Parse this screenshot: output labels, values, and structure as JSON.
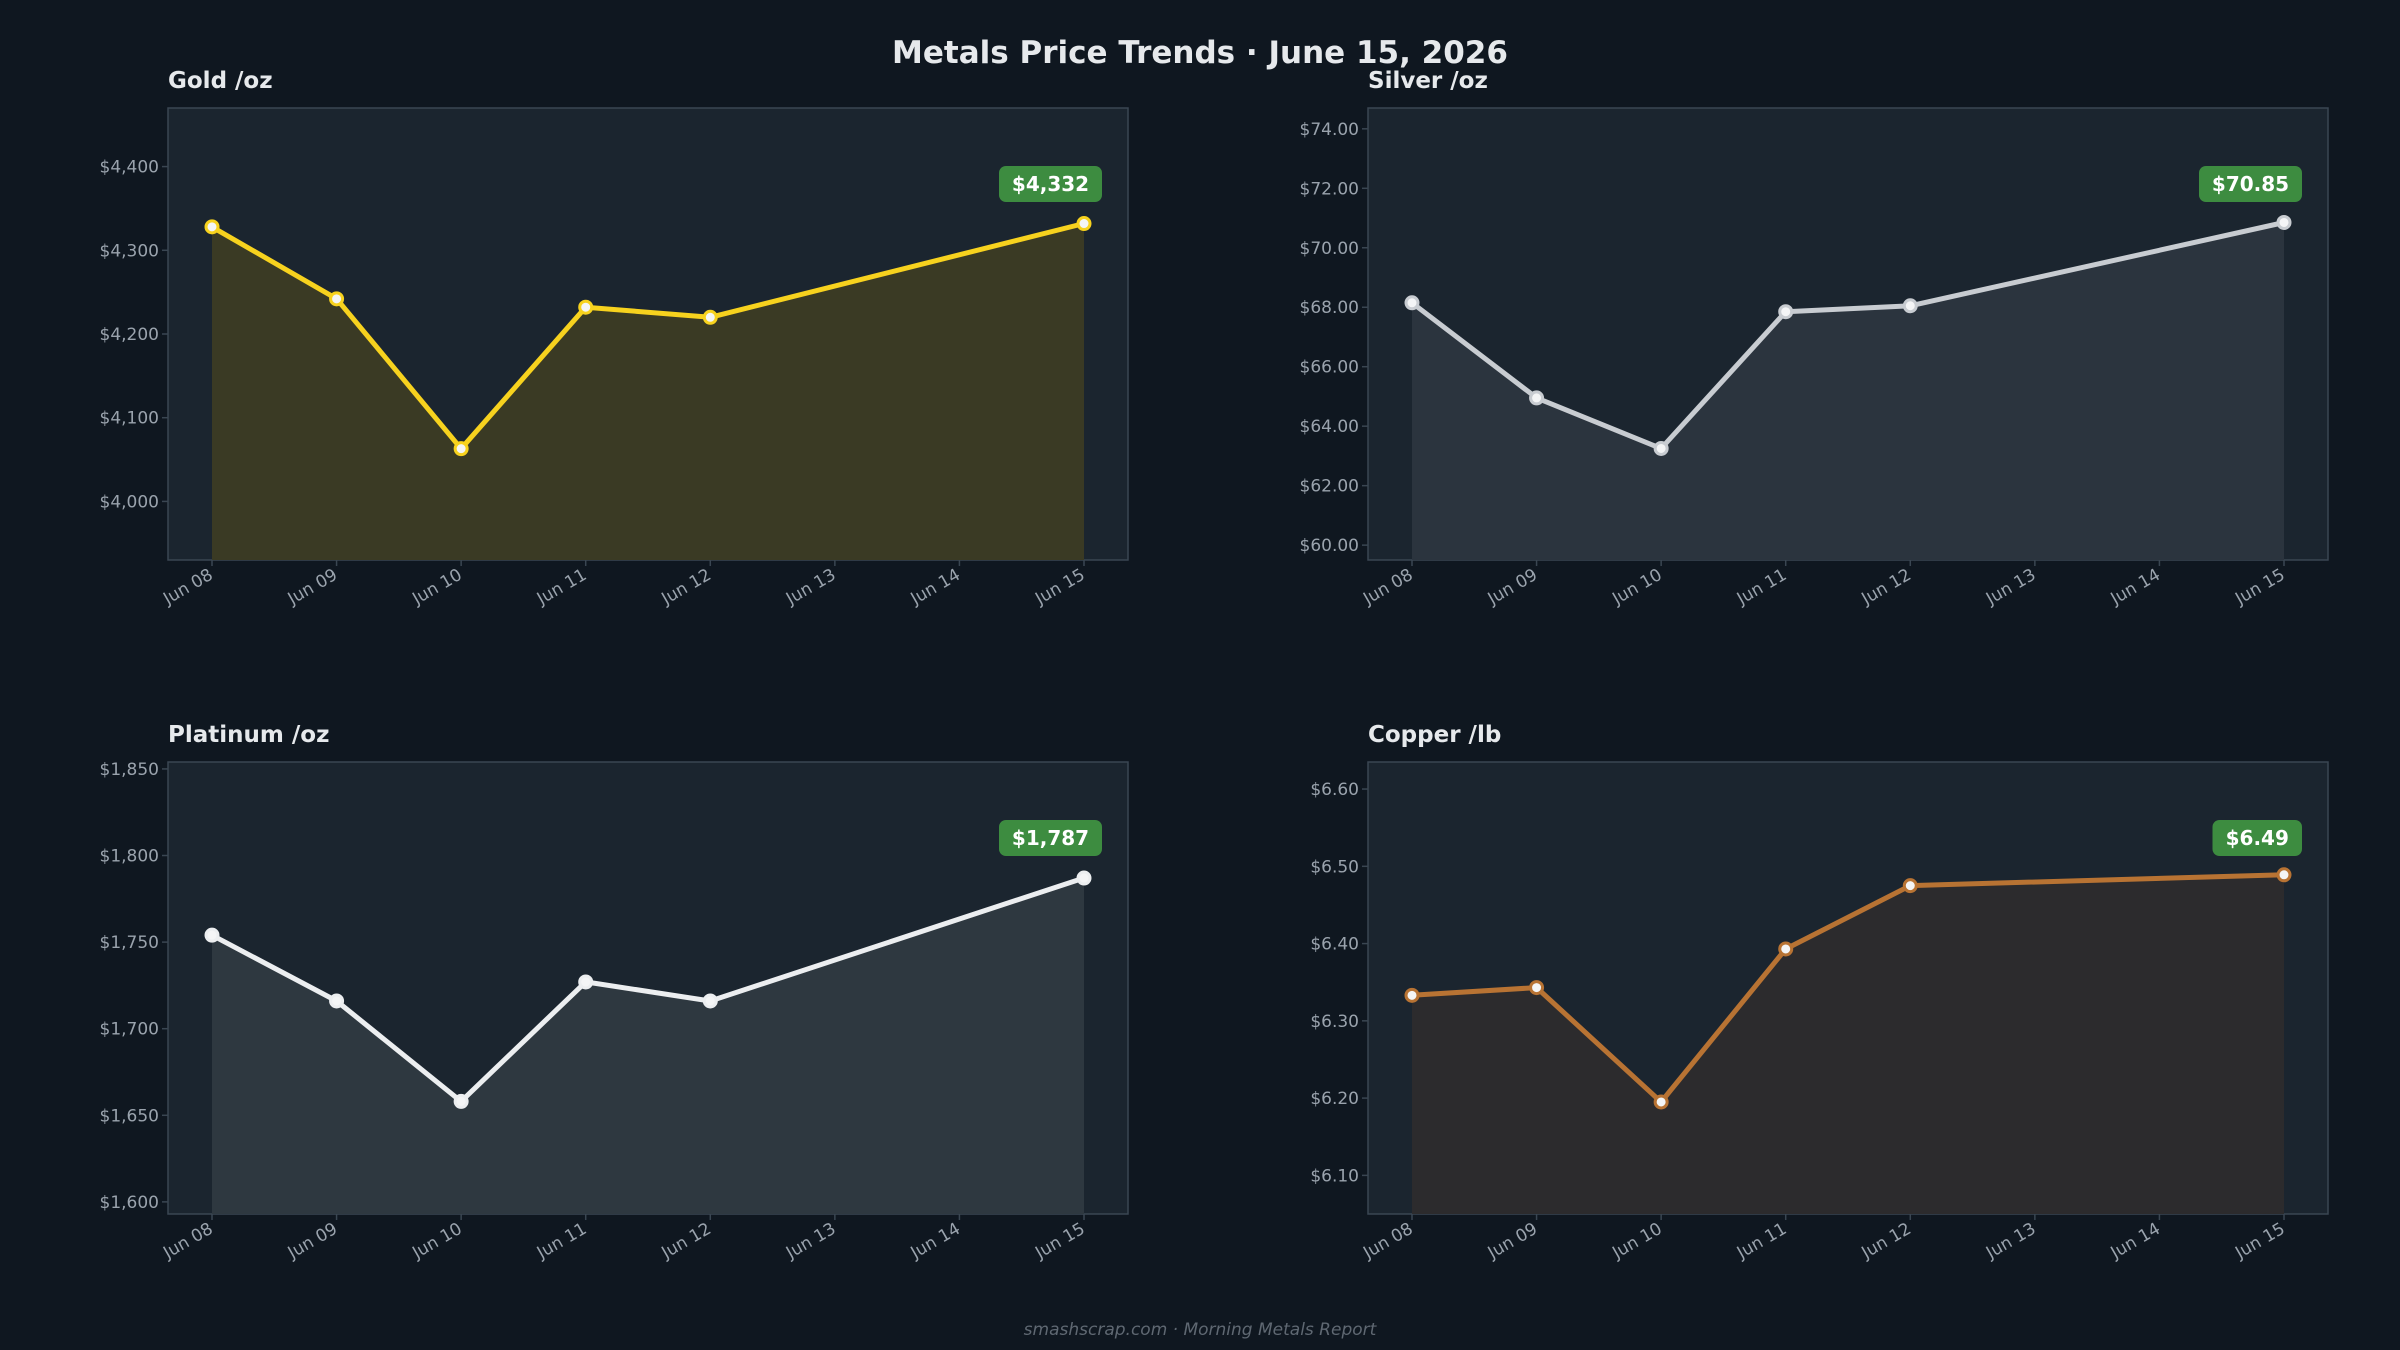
{
  "page": {
    "title": "Metals Price Trends  ·  June 15, 2026",
    "footer": "smashscrap.com  ·  Morning Metals Report"
  },
  "colors": {
    "background": "#0f1720",
    "panel": "#1b252f",
    "panel_border": "#3a4652",
    "title_text": "#e6e9ec",
    "tick_text": "#9aa3ad",
    "badge_bg": "#3d8c40",
    "badge_text": "#ffffff"
  },
  "chart_data": [
    {
      "type": "line",
      "title": "Gold  /oz",
      "categories": [
        "Jun 08",
        "Jun 09",
        "Jun 10",
        "Jun 11",
        "Jun 12",
        "Jun 13",
        "Jun 14",
        "Jun 15"
      ],
      "points": [
        {
          "x": "Jun 08",
          "y": 4328
        },
        {
          "x": "Jun 09",
          "y": 4242
        },
        {
          "x": "Jun 10",
          "y": 4063
        },
        {
          "x": "Jun 11",
          "y": 4232
        },
        {
          "x": "Jun 12",
          "y": 4220
        },
        {
          "x": "Jun 15",
          "y": 4332
        }
      ],
      "ylim": [
        3930,
        4470
      ],
      "yticks": [
        4000,
        4100,
        4200,
        4300,
        4400
      ],
      "ytick_labels": [
        "$4,000",
        "$4,100",
        "$4,200",
        "$4,300",
        "$4,400"
      ],
      "badge": "$4,332",
      "line_color": "#f7d21e",
      "fill_color": "#3a3a24",
      "grid": false
    },
    {
      "type": "line",
      "title": "Silver  /oz",
      "categories": [
        "Jun 08",
        "Jun 09",
        "Jun 10",
        "Jun 11",
        "Jun 12",
        "Jun 13",
        "Jun 14",
        "Jun 15"
      ],
      "points": [
        {
          "x": "Jun 08",
          "y": 68.15
        },
        {
          "x": "Jun 09",
          "y": 64.95
        },
        {
          "x": "Jun 10",
          "y": 63.25
        },
        {
          "x": "Jun 11",
          "y": 67.85
        },
        {
          "x": "Jun 12",
          "y": 68.05
        },
        {
          "x": "Jun 15",
          "y": 70.85
        }
      ],
      "ylim": [
        59.5,
        74.7
      ],
      "yticks": [
        60,
        62,
        64,
        66,
        68,
        70,
        72,
        74
      ],
      "ytick_labels": [
        "$60.00",
        "$62.00",
        "$64.00",
        "$66.00",
        "$68.00",
        "$70.00",
        "$72.00",
        "$74.00"
      ],
      "badge": "$70.85",
      "line_color": "#c8ccd1",
      "fill_color": "#2b343e",
      "grid": false
    },
    {
      "type": "line",
      "title": "Platinum  /oz",
      "categories": [
        "Jun 08",
        "Jun 09",
        "Jun 10",
        "Jun 11",
        "Jun 12",
        "Jun 13",
        "Jun 14",
        "Jun 15"
      ],
      "points": [
        {
          "x": "Jun 08",
          "y": 1754
        },
        {
          "x": "Jun 09",
          "y": 1716
        },
        {
          "x": "Jun 10",
          "y": 1658
        },
        {
          "x": "Jun 11",
          "y": 1727
        },
        {
          "x": "Jun 12",
          "y": 1716
        },
        {
          "x": "Jun 15",
          "y": 1787
        }
      ],
      "ylim": [
        1593,
        1854
      ],
      "yticks": [
        1600,
        1650,
        1700,
        1750,
        1800,
        1850
      ],
      "ytick_labels": [
        "$1,600",
        "$1,650",
        "$1,700",
        "$1,750",
        "$1,800",
        "$1,850"
      ],
      "badge": "$1,787",
      "line_color": "#eceef0",
      "fill_color": "#2e3840",
      "grid": false
    },
    {
      "type": "line",
      "title": "Copper  /lb",
      "categories": [
        "Jun 08",
        "Jun 09",
        "Jun 10",
        "Jun 11",
        "Jun 12",
        "Jun 13",
        "Jun 14",
        "Jun 15"
      ],
      "points": [
        {
          "x": "Jun 08",
          "y": 6.333
        },
        {
          "x": "Jun 09",
          "y": 6.343
        },
        {
          "x": "Jun 10",
          "y": 6.195
        },
        {
          "x": "Jun 11",
          "y": 6.393
        },
        {
          "x": "Jun 12",
          "y": 6.475
        },
        {
          "x": "Jun 15",
          "y": 6.489
        }
      ],
      "ylim": [
        6.05,
        6.635
      ],
      "yticks": [
        6.1,
        6.2,
        6.3,
        6.4,
        6.5,
        6.6
      ],
      "ytick_labels": [
        "$6.10",
        "$6.20",
        "$6.30",
        "$6.40",
        "$6.50",
        "$6.60"
      ],
      "badge": "$6.49",
      "line_color": "#b87333",
      "fill_color": "#2c2b2d",
      "grid": false
    }
  ]
}
